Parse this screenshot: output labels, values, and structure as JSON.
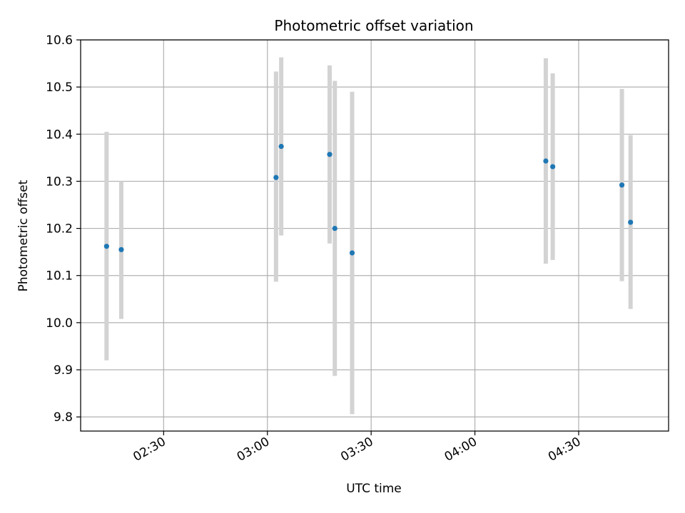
{
  "chart_data": {
    "type": "scatter",
    "title": "Photometric offset variation",
    "xlabel": "UTC time",
    "ylabel": "Photometric offset",
    "x_type": "time",
    "xlim": [
      "02:06",
      "04:56"
    ],
    "ylim": [
      9.77,
      10.6
    ],
    "x_ticks": [
      "02:30",
      "03:00",
      "03:30",
      "04:00",
      "04:30"
    ],
    "y_ticks": [
      "9.8",
      "9.9",
      "10.0",
      "10.1",
      "10.2",
      "10.3",
      "10.4",
      "10.5",
      "10.6"
    ],
    "grid": true,
    "legend": "none",
    "colors": {
      "points": "#1f77b4",
      "error_bars": "#d3d3d3",
      "grid": "#b0b0b0"
    },
    "points": [
      {
        "x": "02:13:30",
        "y": 10.162,
        "yerr_low": 9.92,
        "yerr_high": 10.405
      },
      {
        "x": "02:17:45",
        "y": 10.155,
        "yerr_low": 10.008,
        "yerr_high": 10.3
      },
      {
        "x": "03:02:30",
        "y": 10.308,
        "yerr_low": 10.087,
        "yerr_high": 10.533
      },
      {
        "x": "03:04:00",
        "y": 10.374,
        "yerr_low": 10.185,
        "yerr_high": 10.563
      },
      {
        "x": "03:18:00",
        "y": 10.357,
        "yerr_low": 10.168,
        "yerr_high": 10.546
      },
      {
        "x": "03:19:30",
        "y": 10.2,
        "yerr_low": 9.887,
        "yerr_high": 10.513
      },
      {
        "x": "03:24:30",
        "y": 10.148,
        "yerr_low": 9.806,
        "yerr_high": 10.49
      },
      {
        "x": "04:20:30",
        "y": 10.343,
        "yerr_low": 10.125,
        "yerr_high": 10.561
      },
      {
        "x": "04:22:30",
        "y": 10.331,
        "yerr_low": 10.133,
        "yerr_high": 10.529
      },
      {
        "x": "04:42:30",
        "y": 10.292,
        "yerr_low": 10.088,
        "yerr_high": 10.496
      },
      {
        "x": "04:45:00",
        "y": 10.213,
        "yerr_low": 10.029,
        "yerr_high": 10.398
      }
    ]
  }
}
